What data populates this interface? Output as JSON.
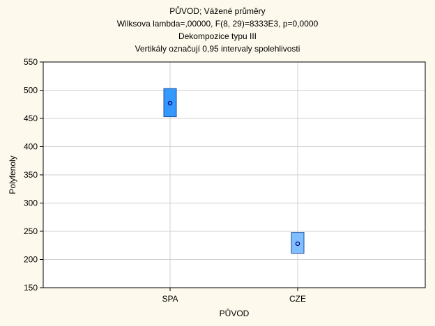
{
  "chart_data": {
    "type": "box",
    "title_lines": [
      "PŮVOD; Vážené průměry",
      "Wilksova lambda=,00000, F(8, 29)=8333E3, p=0,0000",
      "Dekompozice typu III",
      "Vertikály označují 0,95 intervaly spolehlivosti"
    ],
    "xlabel": "PŮVOD",
    "ylabel": "Polyfenoly",
    "categories": [
      "SPA",
      "CZE"
    ],
    "ylim": [
      150,
      550
    ],
    "yticks": [
      150,
      200,
      250,
      300,
      350,
      400,
      450,
      500,
      550
    ],
    "grid": true,
    "points": [
      {
        "category": "SPA",
        "mean": 477,
        "ci_low": 453,
        "ci_high": 503
      },
      {
        "category": "CZE",
        "mean": 228,
        "ci_low": 211,
        "ci_high": 248
      }
    ],
    "colors": {
      "background": "#fdf9ec",
      "plot_background": "#ffffff",
      "grid": "#d0d0d0",
      "box_fill_SPA": "#3399ff",
      "box_fill_CZE": "#80bfff",
      "box_stroke": "#1f4f9a",
      "marker": "#000080"
    }
  }
}
